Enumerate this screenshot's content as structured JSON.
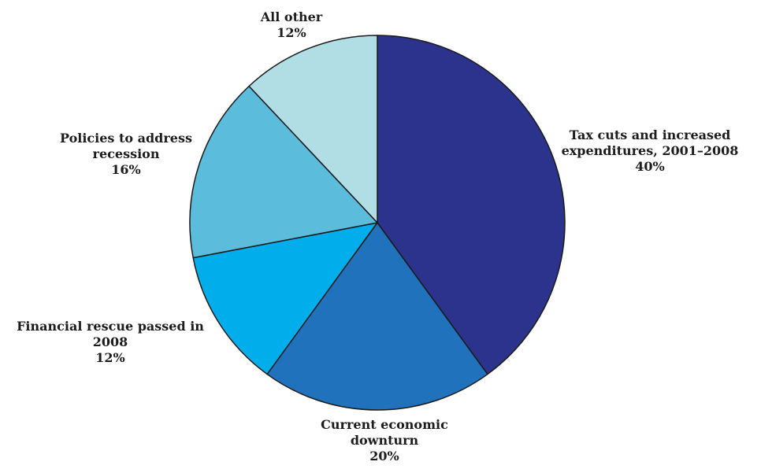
{
  "chart_data": {
    "type": "pie",
    "title": "",
    "start_angle_deg": 0,
    "direction": "clockwise",
    "slices": [
      {
        "lines": [
          "Tax cuts and increased",
          "expenditures, 2001–2008"
        ],
        "pct_label": "40%",
        "value": 40,
        "color": "#2b338c"
      },
      {
        "lines": [
          "Current economic",
          "downturn"
        ],
        "pct_label": "20%",
        "value": 20,
        "color": "#1f72bb"
      },
      {
        "lines": [
          "Financial rescue passed in",
          "2008"
        ],
        "pct_label": "12%",
        "value": 12,
        "color": "#01adea"
      },
      {
        "lines": [
          "Policies to address",
          "recession"
        ],
        "pct_label": "16%",
        "value": 16,
        "color": "#5bbcdc"
      },
      {
        "lines": [
          "All other"
        ],
        "pct_label": "12%",
        "value": 12,
        "color": "#b1dee4"
      }
    ]
  }
}
